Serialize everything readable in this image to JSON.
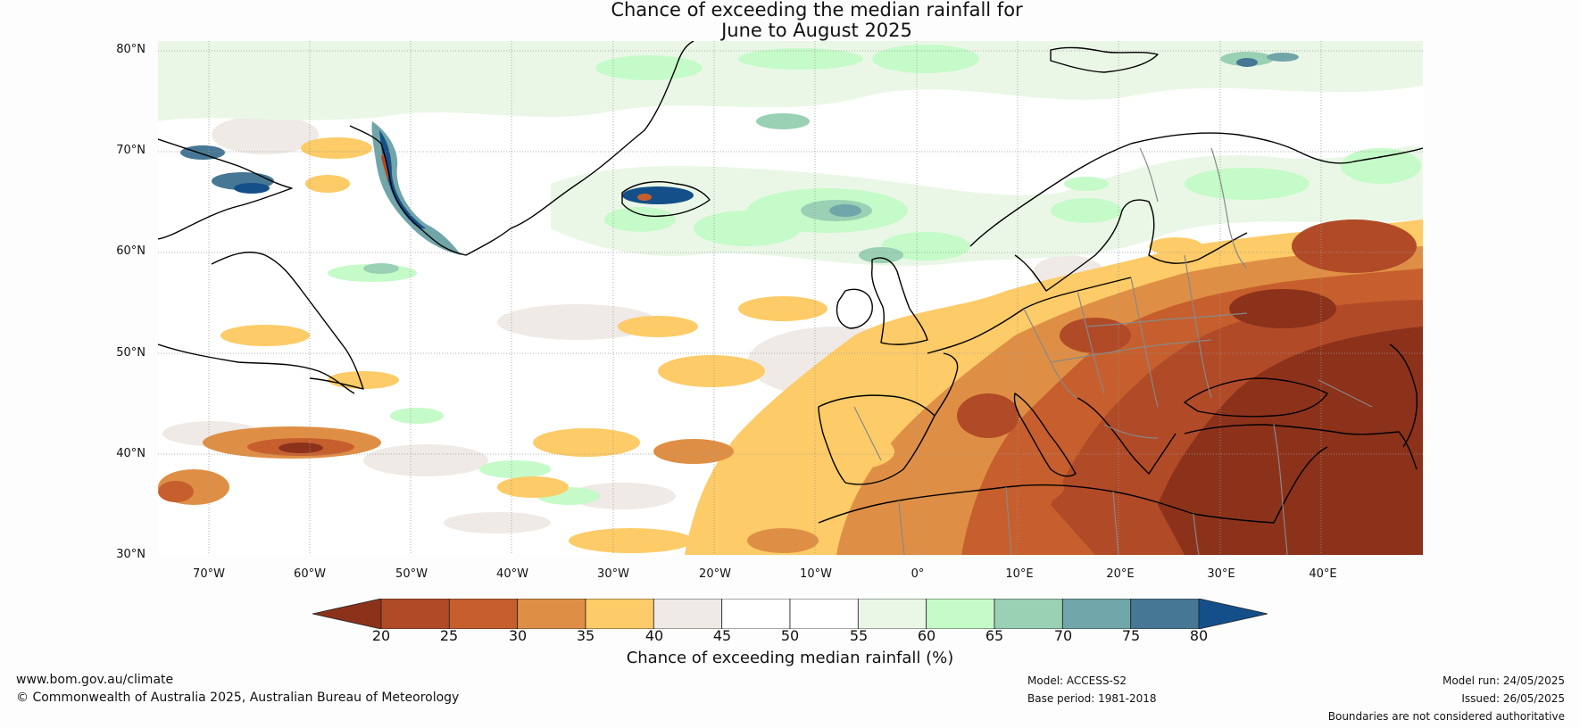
{
  "title": {
    "line1": "Chance of exceeding the median rainfall for",
    "line2": "June to August 2025"
  },
  "map": {
    "lat_labels": [
      "80°N",
      "70°N",
      "60°N",
      "50°N",
      "40°N",
      "30°N"
    ],
    "lon_labels": [
      "70°W",
      "60°W",
      "50°W",
      "40°W",
      "30°W",
      "20°W",
      "10°W",
      "0°",
      "10°E",
      "20°E",
      "30°E",
      "40°E"
    ],
    "lat_range": [
      30,
      81
    ],
    "lon_range": [
      -75,
      50
    ]
  },
  "colorbar": {
    "ticks": [
      "20",
      "25",
      "30",
      "35",
      "40",
      "45",
      "50",
      "55",
      "60",
      "65",
      "70",
      "75",
      "80"
    ],
    "colors": {
      "below_20": "#8c321b",
      "20_25": "#b14a27",
      "25_30": "#c65f2d",
      "30_35": "#df8f45",
      "35_40": "#fdcb67",
      "40_45": "#efeae6",
      "45_50": "#ffffff",
      "50_55": "#ffffff",
      "55_60": "#eaf7e7",
      "60_65": "#c5fbc8",
      "65_70": "#9ad0b4",
      "70_75": "#70a5a9",
      "75_80": "#467794",
      "above_80": "#144f89"
    },
    "label": "Chance of exceeding median rainfall (%)"
  },
  "footer": {
    "website": "www.bom.gov.au/climate",
    "copyright": "© Commonwealth of Australia 2025, Australian Bureau of Meteorology",
    "model": "Model: ACCESS-S2",
    "base_period": "Base period: 1981-2018",
    "model_run": "Model run: 24/05/2025",
    "issued": "Issued: 26/05/2025",
    "disclaimer": "Boundaries are not considered authoritative"
  }
}
